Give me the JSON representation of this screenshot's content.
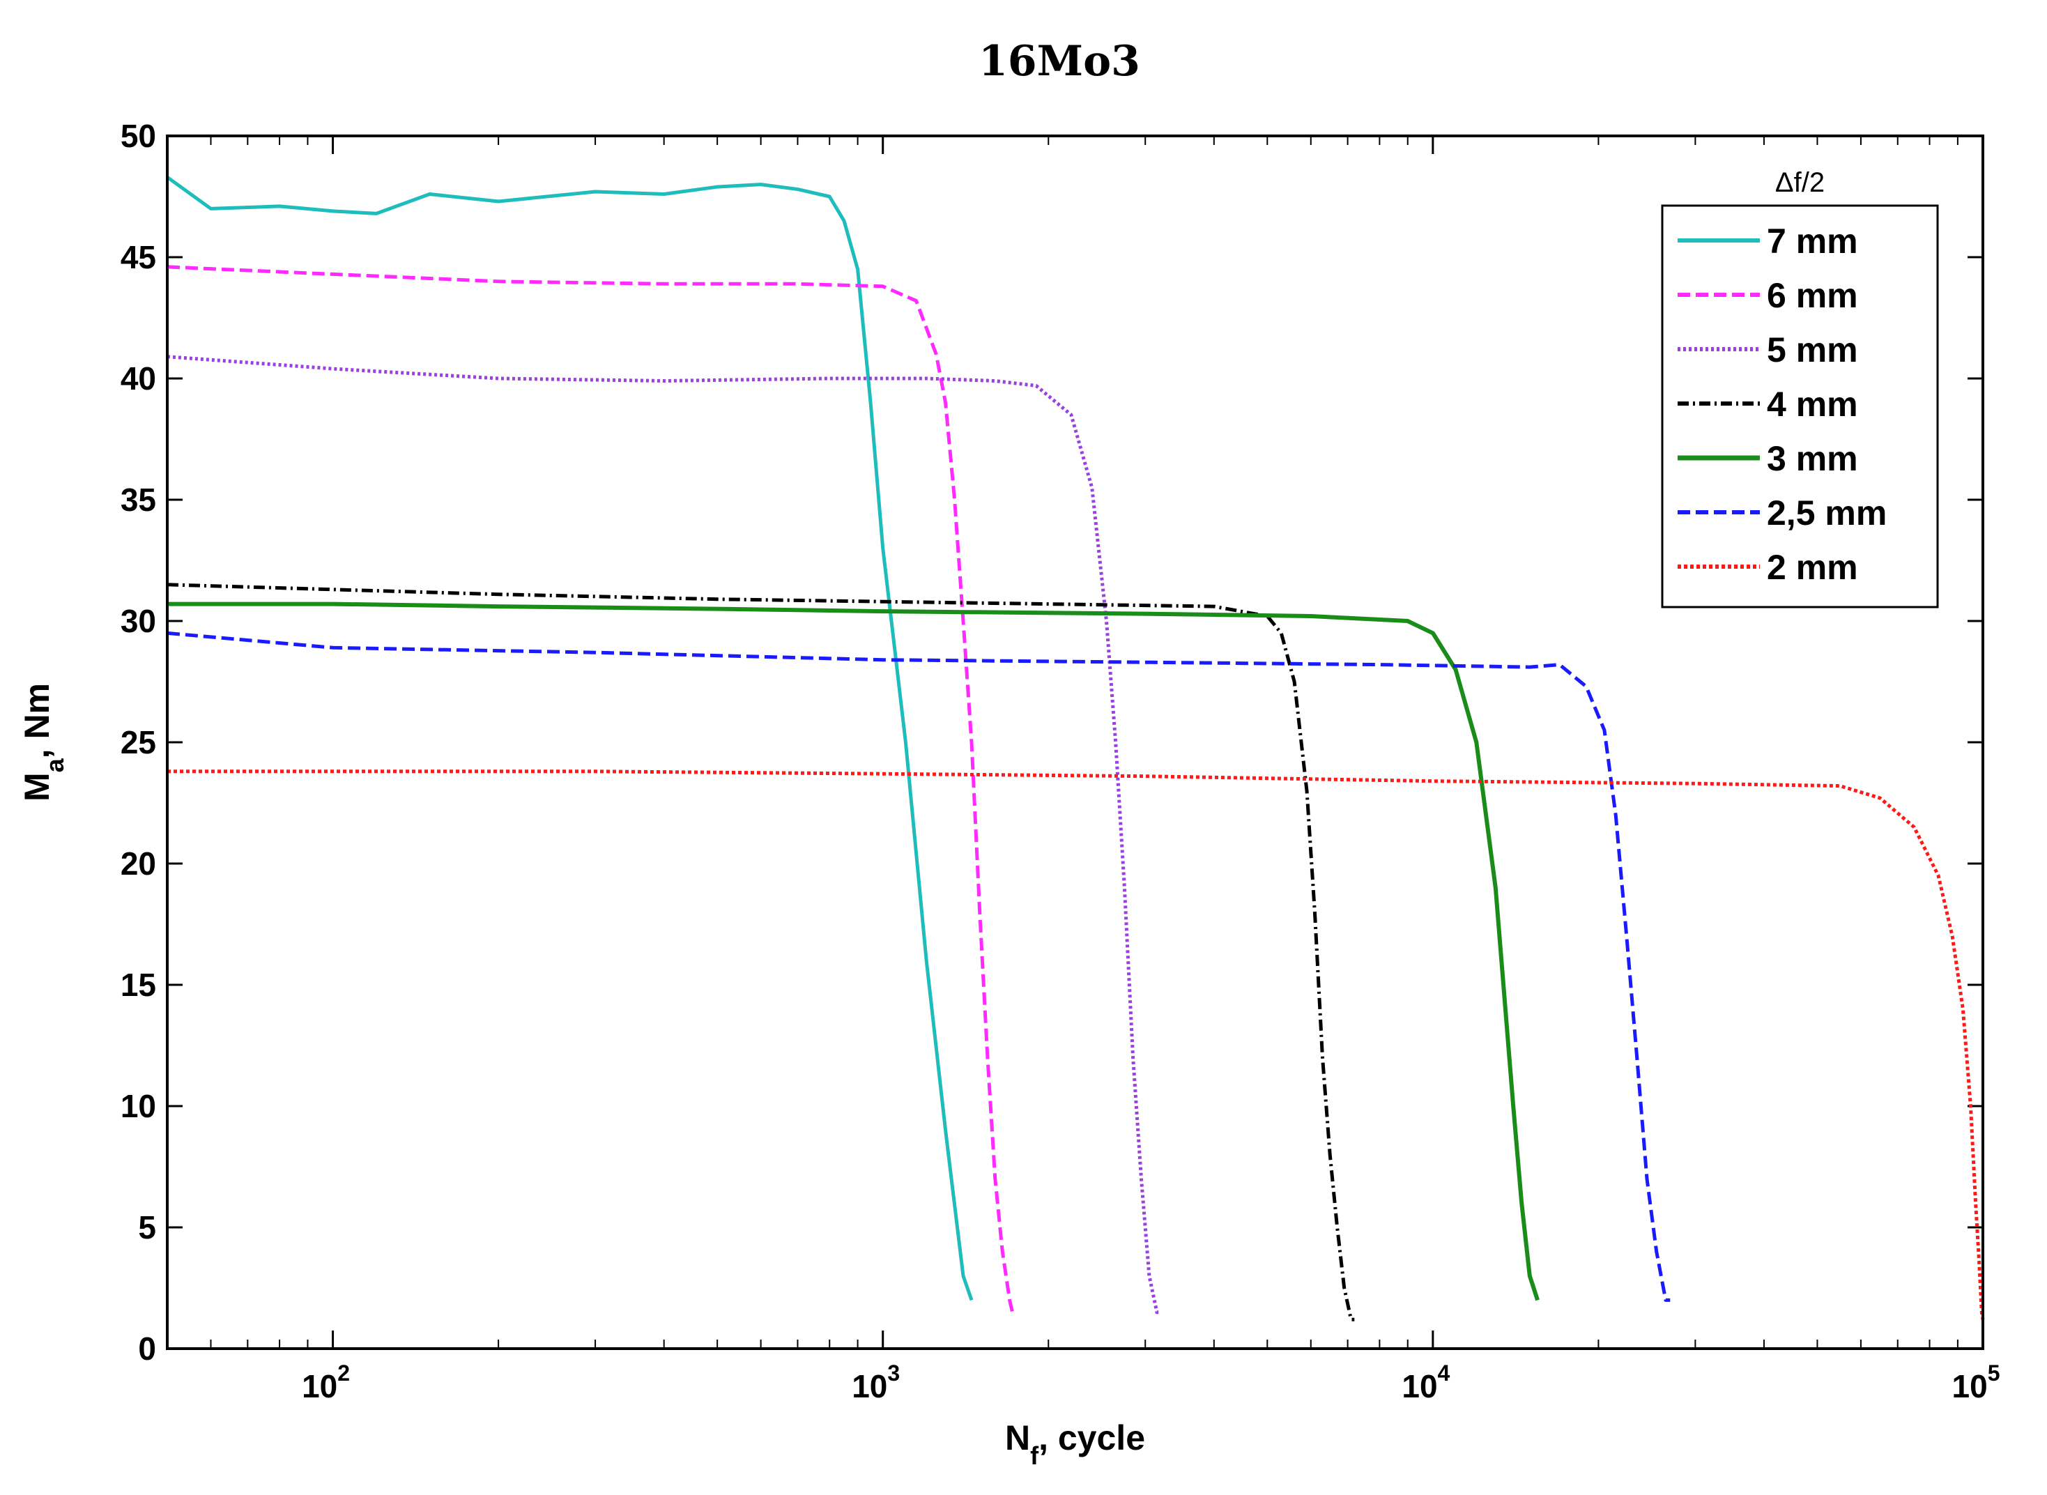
{
  "chart_data": {
    "type": "line",
    "title": "16Mo3",
    "xlabel_main": "N",
    "xlabel_sub": "f",
    "xlabel_rest": ", cycle",
    "ylabel_main": "M",
    "ylabel_sub": "a",
    "ylabel_rest": ", Nm",
    "x_scale": "log",
    "xlim": [
      50,
      100000
    ],
    "ylim": [
      0,
      50
    ],
    "x_ticks": [
      {
        "value": 100,
        "base": "10",
        "exp": "2"
      },
      {
        "value": 1000,
        "base": "10",
        "exp": "3"
      },
      {
        "value": 10000,
        "base": "10",
        "exp": "4"
      },
      {
        "value": 100000,
        "base": "10",
        "exp": "5"
      }
    ],
    "y_ticks": [
      0,
      5,
      10,
      15,
      20,
      25,
      30,
      35,
      40,
      45,
      50
    ],
    "legend_title": "Δf/2",
    "legend_position": "top-right",
    "series": [
      {
        "name": "7 mm",
        "color": "#1fbcbc",
        "dash": "",
        "width": 5,
        "x": [
          50,
          60,
          80,
          100,
          120,
          150,
          200,
          300,
          400,
          500,
          600,
          700,
          800,
          850,
          900,
          950,
          1000,
          1100,
          1200,
          1300,
          1400,
          1450
        ],
        "y": [
          48.3,
          47.0,
          47.1,
          46.9,
          46.8,
          47.6,
          47.3,
          47.7,
          47.6,
          47.9,
          48.0,
          47.8,
          47.5,
          46.5,
          44.5,
          39.0,
          33.0,
          25.0,
          16.0,
          9.0,
          3.0,
          2.0
        ]
      },
      {
        "name": "6 mm",
        "color": "#ff2aff",
        "dash": "18,8",
        "width": 5,
        "x": [
          50,
          100,
          200,
          400,
          700,
          1000,
          1150,
          1250,
          1300,
          1350,
          1400,
          1450,
          1500,
          1550,
          1600,
          1650,
          1700,
          1720
        ],
        "y": [
          44.6,
          44.3,
          44.0,
          43.9,
          43.9,
          43.8,
          43.2,
          41.0,
          39.0,
          35.0,
          30.0,
          25.0,
          18.0,
          12.0,
          7.0,
          4.0,
          2.0,
          1.5
        ]
      },
      {
        "name": "5 mm",
        "color": "#9a40e0",
        "dash": "4,4",
        "width": 5,
        "x": [
          50,
          100,
          200,
          400,
          800,
          1200,
          1600,
          1900,
          2200,
          2400,
          2550,
          2650,
          2750,
          2850,
          2950,
          3050,
          3150,
          3200
        ],
        "y": [
          40.9,
          40.4,
          40.0,
          39.9,
          40.0,
          40.0,
          39.9,
          39.7,
          38.5,
          35.5,
          30.0,
          25.0,
          19.0,
          12.0,
          7.0,
          3.0,
          1.5,
          1.5
        ]
      },
      {
        "name": "4 mm",
        "color": "#000000",
        "dash": "16,6,3,6",
        "width": 5,
        "x": [
          50,
          100,
          200,
          500,
          1000,
          2000,
          4000,
          5000,
          5300,
          5600,
          5900,
          6100,
          6300,
          6500,
          6700,
          6900,
          7100,
          7200
        ],
        "y": [
          31.5,
          31.3,
          31.1,
          30.9,
          30.8,
          30.7,
          30.6,
          30.2,
          29.5,
          27.5,
          23.0,
          18.0,
          12.0,
          8.0,
          5.0,
          2.5,
          1.2,
          1.2
        ]
      },
      {
        "name": "3 mm",
        "color": "#1a8c1a",
        "dash": "",
        "width": 6,
        "x": [
          50,
          100,
          200,
          500,
          1000,
          3000,
          6000,
          9000,
          10000,
          11000,
          12000,
          13000,
          14000,
          14500,
          15000,
          15500
        ],
        "y": [
          30.7,
          30.7,
          30.6,
          30.5,
          30.4,
          30.3,
          30.2,
          30.0,
          29.5,
          28.0,
          25.0,
          19.0,
          10.0,
          6.0,
          3.0,
          2.0
        ]
      },
      {
        "name": "2,5 mm",
        "color": "#1a1aff",
        "dash": "18,8",
        "width": 5,
        "x": [
          50,
          100,
          300,
          1000,
          3000,
          8000,
          15000,
          17000,
          19000,
          20500,
          21500,
          22500,
          23500,
          24500,
          25500,
          26500,
          27000
        ],
        "y": [
          29.5,
          28.9,
          28.7,
          28.4,
          28.3,
          28.2,
          28.1,
          28.2,
          27.3,
          25.5,
          22.0,
          17.0,
          12.0,
          7.0,
          4.0,
          2.0,
          2.0
        ]
      },
      {
        "name": "2 mm",
        "color": "#ff1a1a",
        "dash": "5,4",
        "width": 5,
        "x": [
          50,
          100,
          300,
          1000,
          3000,
          10000,
          30000,
          55000,
          65000,
          75000,
          83000,
          88000,
          92000,
          95000,
          97000,
          98500,
          99500,
          100000
        ],
        "y": [
          23.8,
          23.8,
          23.8,
          23.7,
          23.6,
          23.4,
          23.3,
          23.2,
          22.7,
          21.5,
          19.5,
          17.0,
          14.0,
          10.0,
          6.0,
          3.5,
          1.5,
          1.2
        ]
      }
    ]
  }
}
